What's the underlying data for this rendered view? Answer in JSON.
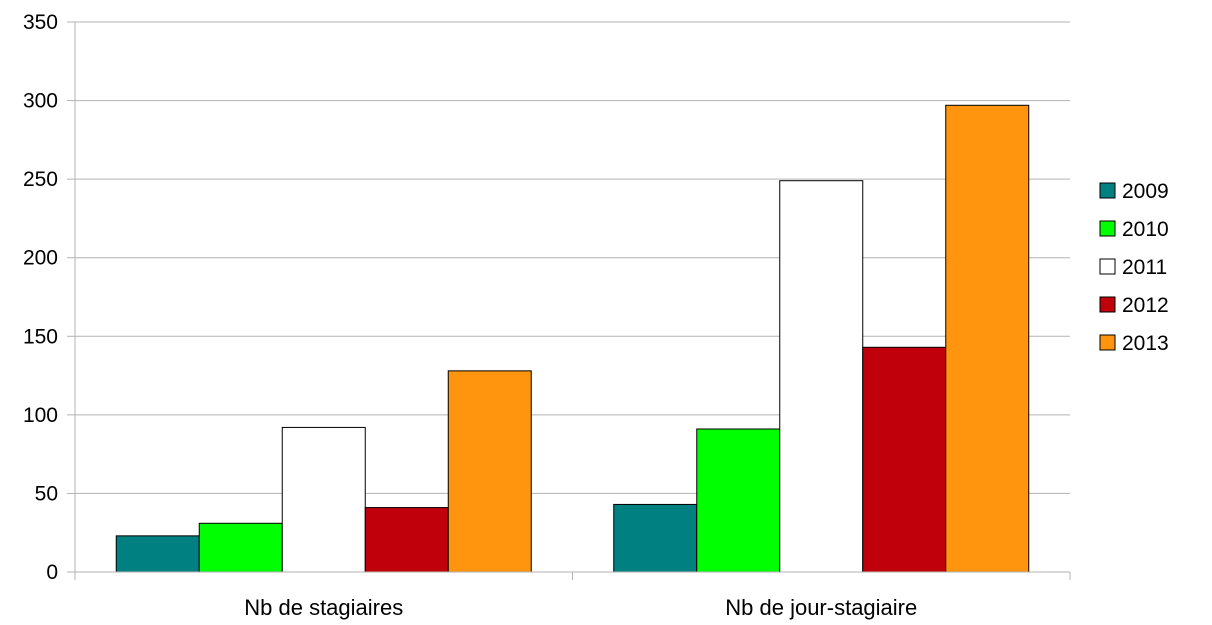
{
  "chart_data": {
    "type": "bar",
    "title": "",
    "xlabel": "",
    "ylabel": "",
    "categories": [
      "Nb de stagiaires",
      "Nb de jour-stagiaire"
    ],
    "series": [
      {
        "name": "2009",
        "color": "#008080",
        "values": [
          23,
          43
        ]
      },
      {
        "name": "2010",
        "color": "#00ff00",
        "values": [
          31,
          91
        ]
      },
      {
        "name": "2011",
        "color": "#ffffff",
        "values": [
          92,
          249
        ]
      },
      {
        "name": "2012",
        "color": "#c0000b",
        "values": [
          41,
          143
        ]
      },
      {
        "name": "2013",
        "color": "#ff950e",
        "values": [
          128,
          297
        ]
      }
    ],
    "ylim": [
      0,
      350
    ],
    "yticks": [
      0,
      50,
      100,
      150,
      200,
      250,
      300,
      350
    ],
    "yticks_labels": [
      "0",
      "50",
      "100",
      "150",
      "200",
      "250",
      "300",
      "350"
    ],
    "grid": true,
    "legend_position": "right",
    "gridline_color": "#b3b3b3",
    "bar_outline_color": "#000000"
  }
}
